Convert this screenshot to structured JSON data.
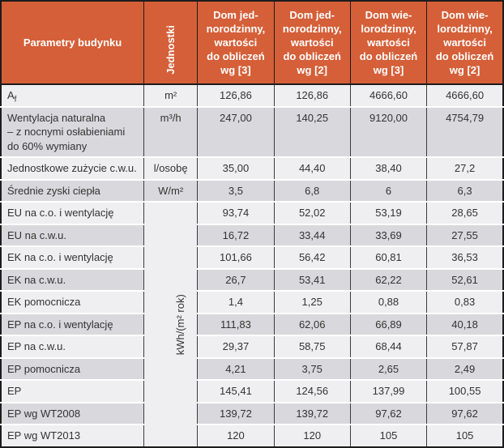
{
  "colors": {
    "header_bg": "#d55f38",
    "header_text": "#ffffff",
    "row_light": "#efeef1",
    "row_dark": "#d9d8dc",
    "border_dark": "#1c1c1c",
    "grid_line": "#3c3c3c",
    "separator": "#ffffff",
    "body_text": "#333333"
  },
  "table": {
    "header": {
      "param": "Parametry budynku",
      "units": "Jednostki",
      "value_cols": [
        "Dom jed-\nnorodzinny,\nwartości\ndo obliczeń\nwg [3]",
        "Dom jed-\nnorodzinny,\nwartości\ndo obliczeń\nwg [2]",
        "Dom wie-\nlorodzinny,\nwartości\ndo obliczeń\nwg [3]",
        "Dom wie-\nlorodzinny,\nwartości\ndo obliczeń\nwg [2]"
      ]
    },
    "merged_unit": {
      "label": "kWh/(m² rok)",
      "start_row_index": 4,
      "row_span": 11
    },
    "rows": [
      {
        "param": "A",
        "param_sub": "f",
        "unit": "m²",
        "values": [
          "126,86",
          "126,86",
          "4666,60",
          "4666,60"
        ]
      },
      {
        "param": "Wentylacja naturalna\n– z nocnymi osłabieniami\ndo 60% wymiany",
        "unit": "m³/h",
        "values": [
          "247,00",
          "140,25",
          "9120,00",
          "4754,79"
        ]
      },
      {
        "param": "Jednostkowe zużycie c.w.u.",
        "unit": "l/osobę",
        "values": [
          "35,00",
          "44,40",
          "38,40",
          "27,2"
        ]
      },
      {
        "param": "Średnie zyski ciepła",
        "unit": "W/m²",
        "values": [
          "3,5",
          "6,8",
          "6",
          "6,3"
        ]
      },
      {
        "param": "EU na c.o. i wentylację",
        "values": [
          "93,74",
          "52,02",
          "53,19",
          "28,65"
        ]
      },
      {
        "param": "EU na c.w.u.",
        "values": [
          "16,72",
          "33,44",
          "33,69",
          "27,55"
        ]
      },
      {
        "param": "EK na c.o. i wentylację",
        "values": [
          "101,66",
          "56,42",
          "60,81",
          "36,53"
        ]
      },
      {
        "param": "EK na c.w.u.",
        "values": [
          "26,7",
          "53,41",
          "62,22",
          "52,61"
        ]
      },
      {
        "param": "EK pomocnicza",
        "values": [
          "1,4",
          "1,25",
          "0,88",
          "0,83"
        ]
      },
      {
        "param": "EP na c.o. i wentylację",
        "values": [
          "111,83",
          "62,06",
          "66,89",
          "40,18"
        ]
      },
      {
        "param": "EP na c.w.u.",
        "values": [
          "29,37",
          "58,75",
          "68,44",
          "57,87"
        ]
      },
      {
        "param": "EP pomocnicza",
        "values": [
          "4,21",
          "3,75",
          "2,65",
          "2,49"
        ]
      },
      {
        "param": "EP",
        "values": [
          "145,41",
          "124,56",
          "137,99",
          "100,55"
        ]
      },
      {
        "param": "EP wg WT2008",
        "values": [
          "139,72",
          "139,72",
          "97,62",
          "97,62"
        ]
      },
      {
        "param": "EP wg WT2013",
        "values": [
          "120",
          "120",
          "105",
          "105"
        ]
      }
    ]
  }
}
